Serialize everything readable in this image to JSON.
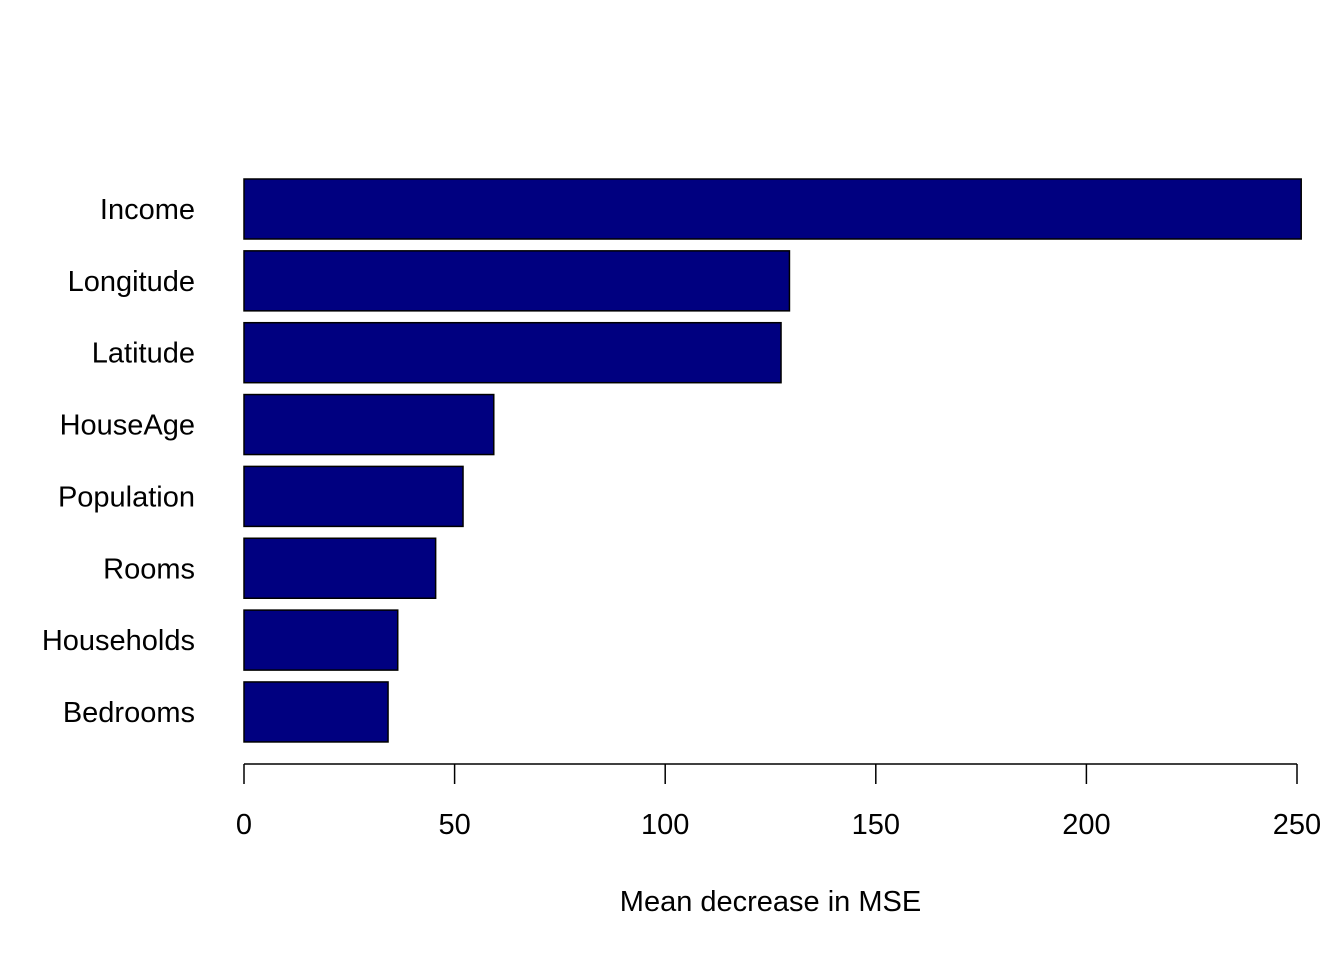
{
  "chart_data": {
    "type": "bar",
    "orientation": "horizontal",
    "categories": [
      "Income",
      "Longitude",
      "Latitude",
      "HouseAge",
      "Population",
      "Rooms",
      "Households",
      "Bedrooms"
    ],
    "values": [
      251,
      129.5,
      127.5,
      59.3,
      52,
      45.5,
      36.5,
      34.2
    ],
    "title": "",
    "xlabel": "Mean decrease in MSE",
    "ylabel": "",
    "xlim": [
      0,
      250
    ],
    "xticks": [
      "0",
      "50",
      "100",
      "150",
      "200",
      "250"
    ],
    "grid": false,
    "legend": "none",
    "colors": {
      "bar_fill": "#000080",
      "bar_stroke": "#000000",
      "axis": "#000000",
      "text": "#000000"
    }
  }
}
